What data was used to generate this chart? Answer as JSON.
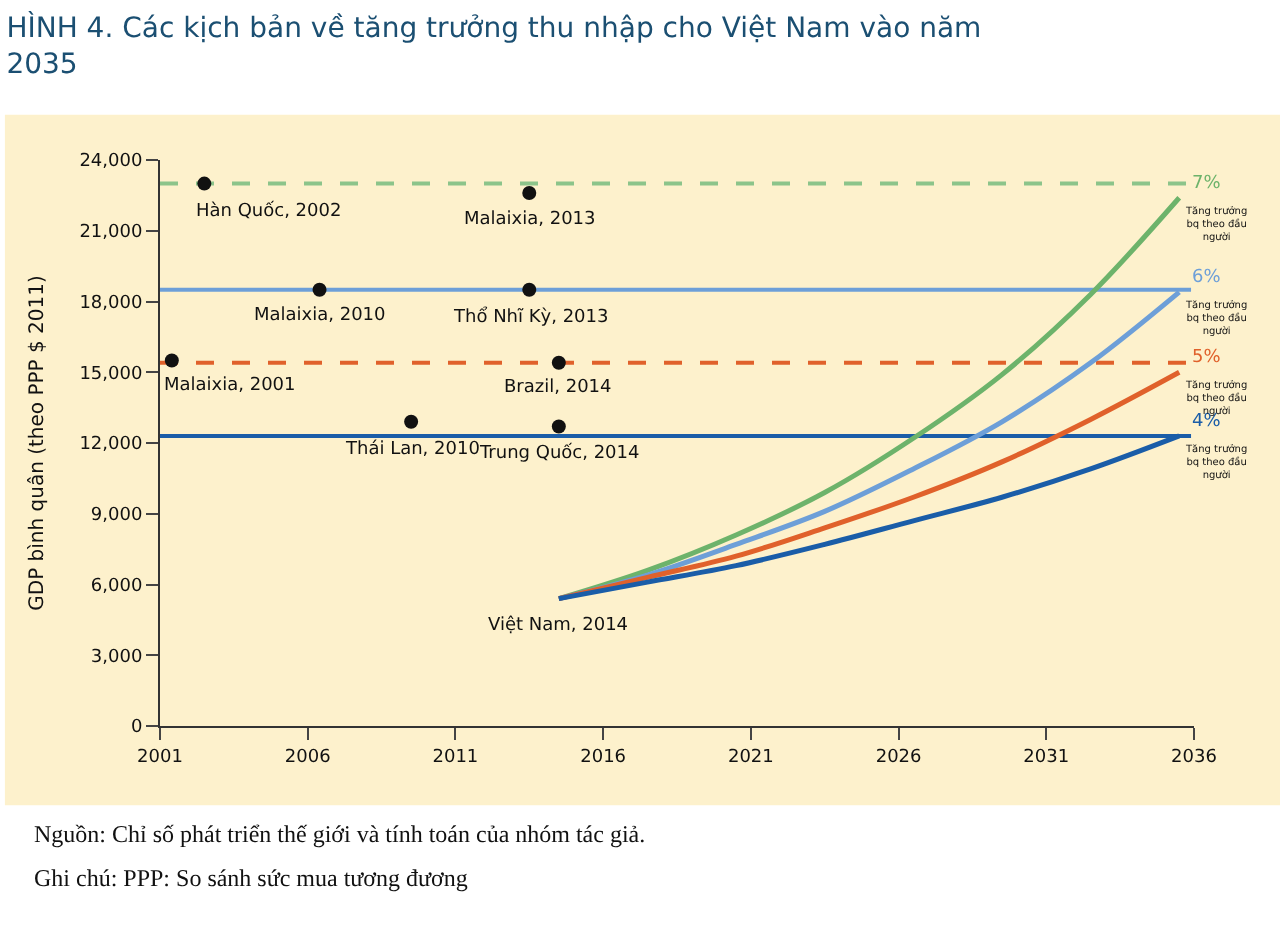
{
  "chart_data": {
    "type": "line",
    "title": "HÌNH 4. Các kịch bản về tăng trưởng thu nhập cho Việt Nam vào năm 2035",
    "ylabel": "GDP bình quân (theo PPP $ 2011)",
    "xlim": [
      2001,
      2036
    ],
    "xticks": [
      2001,
      2006,
      2011,
      2016,
      2021,
      2026,
      2031,
      2036
    ],
    "ylim": [
      0,
      24000
    ],
    "yticks": [
      0,
      {
        "value": 3000,
        "label": "3,000"
      },
      {
        "value": 6000,
        "label": "6,000"
      },
      {
        "value": 9000,
        "label": "9,000"
      },
      {
        "value": 12000,
        "label": "12,000"
      },
      {
        "value": 15000,
        "label": "15,000"
      },
      {
        "value": 18000,
        "label": "18,000"
      },
      {
        "value": 21000,
        "label": "21,000"
      },
      {
        "value": 24000,
        "label": "24,000"
      }
    ],
    "grid": false,
    "legend": false,
    "series": [
      {
        "name": "7%",
        "color": "#6db36b",
        "x": [
          2014.5,
          2017.5,
          2020.5,
          2023.5,
          2026.5,
          2029.5,
          2032.5,
          2035.5
        ],
        "values": [
          5400,
          6600,
          8100,
          9900,
          12200,
          14900,
          18300,
          22400
        ]
      },
      {
        "name": "6%",
        "color": "#6d9fd8",
        "x": [
          2014.5,
          2017.5,
          2020.5,
          2023.5,
          2026.5,
          2029.5,
          2032.5,
          2035.5
        ],
        "values": [
          5400,
          6400,
          7700,
          9100,
          10900,
          12900,
          15400,
          18400
        ]
      },
      {
        "name": "5%",
        "color": "#e0612b",
        "x": [
          2014.5,
          2017.5,
          2020.5,
          2023.5,
          2026.5,
          2029.5,
          2032.5,
          2035.5
        ],
        "values": [
          5400,
          6300,
          7200,
          8400,
          9700,
          11200,
          13000,
          15000
        ]
      },
      {
        "name": "4%",
        "color": "#1a5da8",
        "x": [
          2014.5,
          2017.5,
          2020.5,
          2023.5,
          2026.5,
          2029.5,
          2032.5,
          2035.5
        ],
        "values": [
          5400,
          6100,
          6800,
          7700,
          8700,
          9700,
          10900,
          12300
        ]
      },
      {
        "type": "scatter",
        "marker": "circle",
        "color": "#111111",
        "x": [
          2002.5,
          2013.5,
          2006.4,
          2013.5,
          2001.4,
          2014.5,
          2009.5,
          2014.5
        ],
        "values": [
          23000,
          22600,
          18500,
          18500,
          15500,
          15400,
          12900,
          12700
        ]
      }
    ],
    "ref_lines": [
      {
        "axis": "y",
        "value": 23000,
        "color": "#8cc48a",
        "line_style": "dashed"
      },
      {
        "axis": "y",
        "value": 18500,
        "color": "#6d9fd8",
        "line_style": "solid"
      },
      {
        "axis": "y",
        "value": 15400,
        "color": "#e0612b",
        "line_style": "dashed"
      },
      {
        "axis": "y",
        "value": 12300,
        "color": "#1a5da8",
        "line_style": "solid"
      }
    ],
    "annotations": [
      {
        "text": "Hàn Quốc, 2002",
        "x": 2002.5,
        "y": 23000
      },
      {
        "text": "Malaixia, 2013",
        "x": 2013.5,
        "y": 22600
      },
      {
        "text": "Malaixia, 2010",
        "x": 2006.4,
        "y": 18500
      },
      {
        "text": "Thổ Nhĩ Kỳ, 2013",
        "x": 2013.5,
        "y": 18500
      },
      {
        "text": "Malaixia, 2001",
        "x": 2001.4,
        "y": 15500
      },
      {
        "text": "Brazil, 2014",
        "x": 2014.5,
        "y": 15400
      },
      {
        "text": "Thái Lan, 2010",
        "x": 2009.5,
        "y": 12900
      },
      {
        "text": "Trung Quốc, 2014",
        "x": 2014.5,
        "y": 12700
      },
      {
        "text": "Việt Nam, 2014",
        "x": 2014.5,
        "y": 5400
      },
      {
        "text": "Tăng trưởng bq theo đầu người",
        "x": 2035.5,
        "y": 22400
      },
      {
        "text": "Tăng trưởng bq theo đầu người",
        "x": 2035.5,
        "y": 18400
      },
      {
        "text": "Tăng trưởng bq theo đầu người",
        "x": 2035.5,
        "y": 15000
      },
      {
        "text": "Tăng trưởng bq theo đầu người",
        "x": 2035.5,
        "y": 12300
      },
      "Nguồn: Chỉ số phát triển thế giới và tính toán của nhóm tác giả.",
      "Ghi chú: PPP: So sánh sức mua tương đương"
    ]
  }
}
